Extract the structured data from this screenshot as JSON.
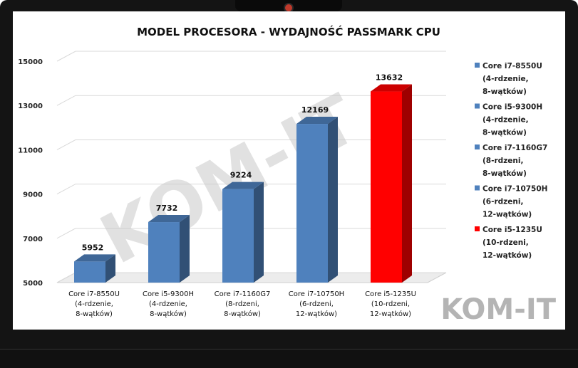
{
  "chart_data": {
    "type": "bar",
    "title": "MODEL PROCESORA - WYDAJNOŚĆ PASSMARK CPU",
    "categories": [
      [
        "Core i7-8550U",
        "(4-rdzenie,",
        "8-wątków)"
      ],
      [
        "Core i5-9300H",
        "(4-rdzenie,",
        "8-wątków)"
      ],
      [
        "Core i7-1160G7",
        "(8-rdzeni,",
        "8-wątków)"
      ],
      [
        "Core i7-10750H",
        "(6-rdzeni,",
        "12-wątków)"
      ],
      [
        "Core i5-1235U",
        "(10-rdzeni,",
        "12-wątków)"
      ]
    ],
    "values": [
      5952,
      7732,
      9224,
      12169,
      13632
    ],
    "bar_colors": [
      "#4f81bd",
      "#4f81bd",
      "#4f81bd",
      "#4f81bd",
      "#ff0000"
    ],
    "ylim": [
      5000,
      15000
    ],
    "yticks": [
      5000,
      7000,
      9000,
      11000,
      13000,
      15000
    ],
    "grid": true,
    "legend_position": "right",
    "legend": [
      {
        "lines": [
          "Core i7-8550U",
          "(4-rdzenie,",
          "8-wątków)"
        ],
        "color": "#4f81bd"
      },
      {
        "lines": [
          "Core i5-9300H",
          "(4-rdzenie,",
          "8-wątków)"
        ],
        "color": "#4f81bd"
      },
      {
        "lines": [
          "Core i7-1160G7",
          "(8-rdzeni,",
          "8-wątków)"
        ],
        "color": "#4f81bd"
      },
      {
        "lines": [
          "Core i7-10750H",
          "(6-rdzeni,",
          "12-wątków)"
        ],
        "color": "#4f81bd"
      },
      {
        "lines": [
          "Core i5-1235U",
          "(10-rdzeni,",
          "12-wątków)"
        ],
        "color": "#ff0000"
      }
    ]
  },
  "watermark": {
    "diagonal_text": "KOM-IT",
    "corner_text": "KOM-IT"
  }
}
